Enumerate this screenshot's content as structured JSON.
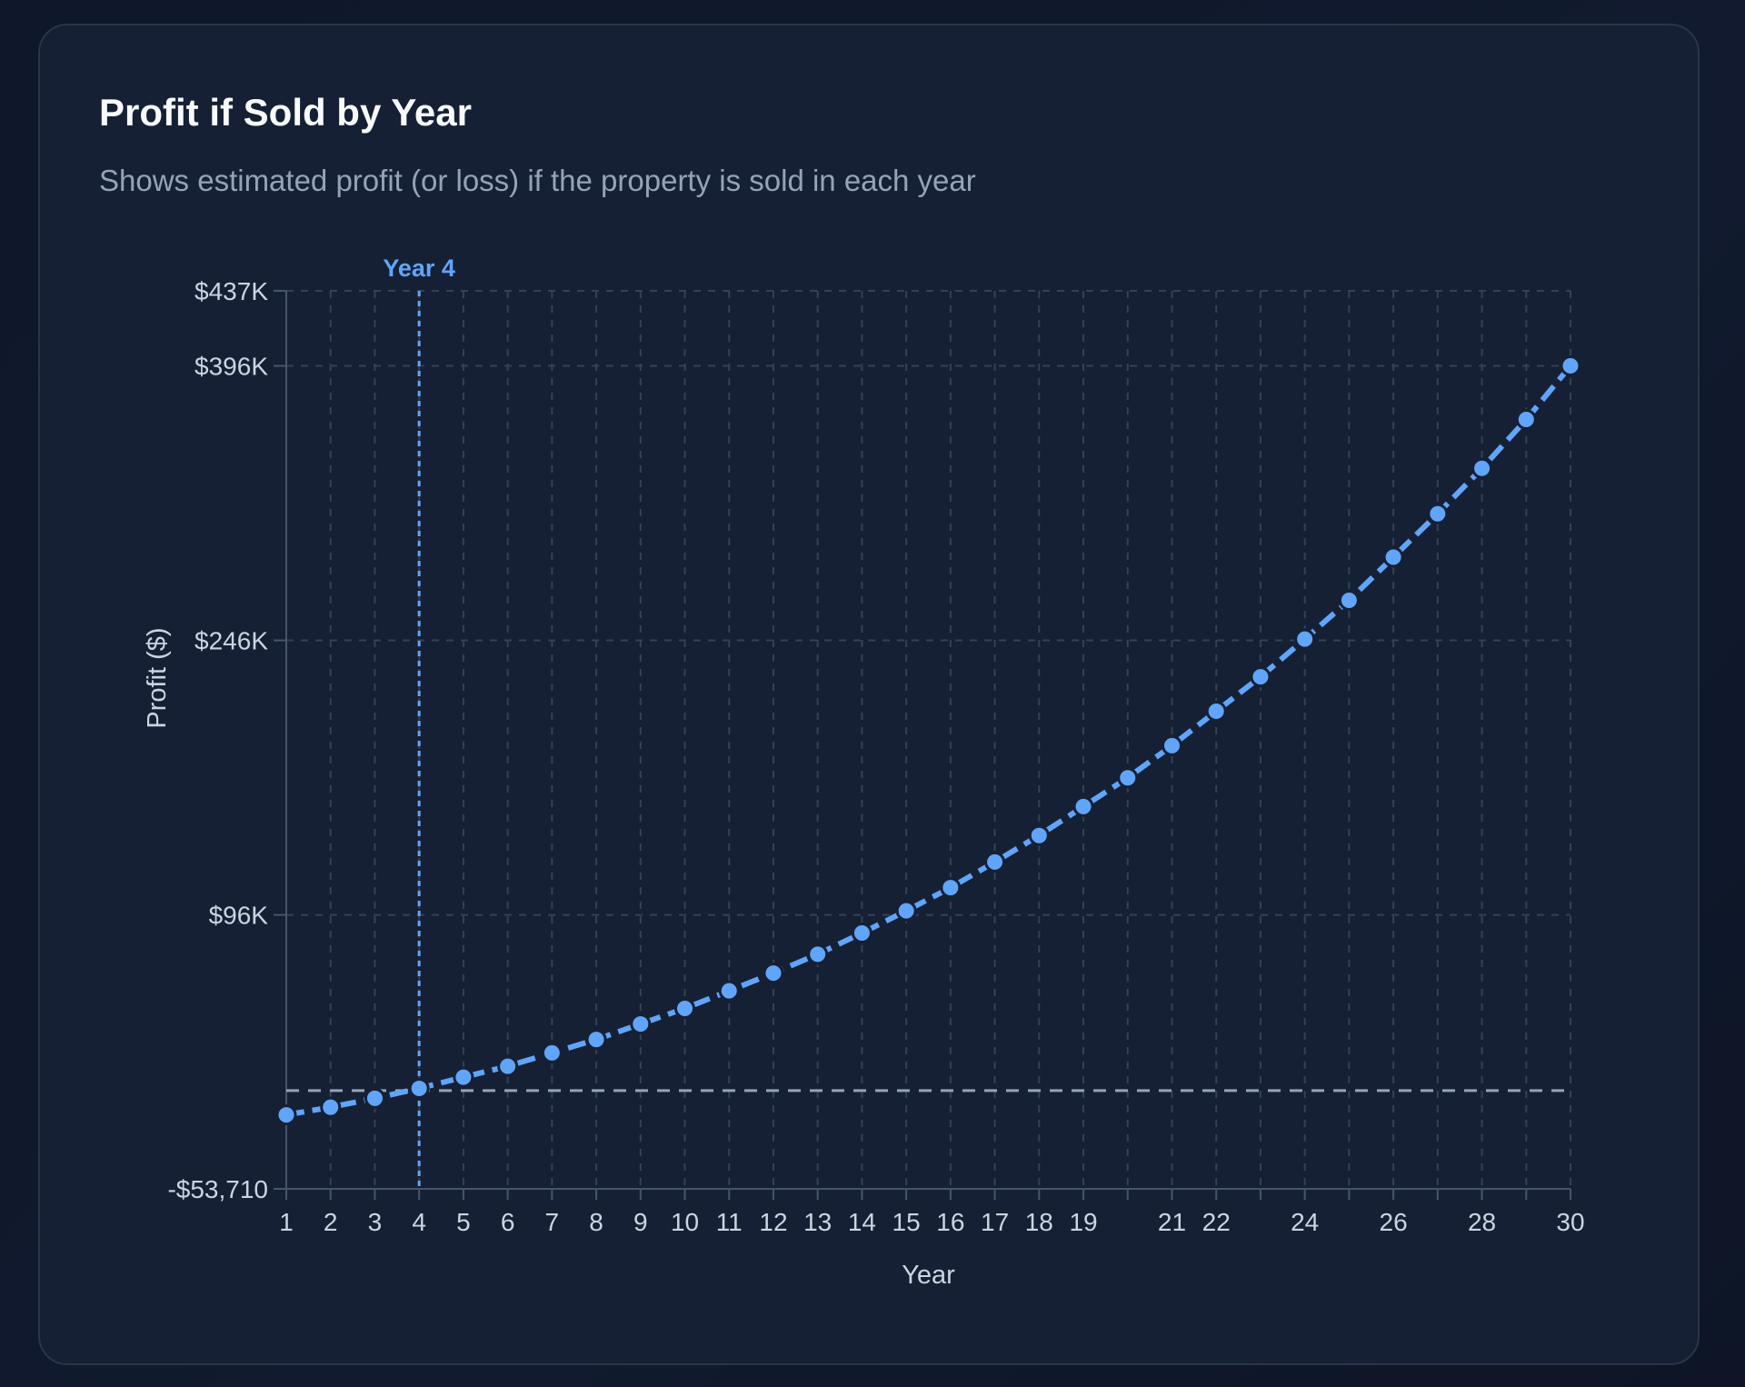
{
  "card": {
    "title": "Profit if Sold by Year",
    "subtitle": "Shows estimated profit (or loss) if the property is sold in each year"
  },
  "chart_data": {
    "type": "line",
    "xlabel": "Year",
    "ylabel": "Profit ($)",
    "x": [
      1,
      2,
      3,
      4,
      5,
      6,
      7,
      8,
      9,
      10,
      11,
      12,
      13,
      14,
      15,
      16,
      17,
      18,
      19,
      20,
      21,
      22,
      23,
      24,
      25,
      26,
      27,
      28,
      29,
      30
    ],
    "values": [
      -13300,
      -9100,
      -4200,
      1200,
      7300,
      13300,
      20600,
      27900,
      36400,
      44900,
      54500,
      64200,
      74500,
      86100,
      98200,
      110900,
      124900,
      139400,
      155200,
      170900,
      188500,
      207300,
      226100,
      246700,
      267900,
      291500,
      315200,
      340000,
      366700,
      396000
    ],
    "x_tick_labels": [
      "1",
      "2",
      "3",
      "4",
      "5",
      "6",
      "7",
      "8",
      "9",
      "10",
      "11",
      "12",
      "13",
      "14",
      "15",
      "16",
      "17",
      "18",
      "19",
      "21",
      "22",
      "24",
      "26",
      "28",
      "30"
    ],
    "x_tick_values": [
      1,
      2,
      3,
      4,
      5,
      6,
      7,
      8,
      9,
      10,
      11,
      12,
      13,
      14,
      15,
      16,
      17,
      18,
      19,
      21,
      22,
      24,
      26,
      28,
      30
    ],
    "y_ticks": [
      {
        "value": 437000,
        "label": "$437K"
      },
      {
        "value": 396000,
        "label": "$396K"
      },
      {
        "value": 246000,
        "label": "$246K"
      },
      {
        "value": 96000,
        "label": "$96K"
      },
      {
        "value": -53710,
        "label": "-$53,710"
      }
    ],
    "xlim": [
      1,
      30
    ],
    "ylim": [
      -53710,
      437000
    ],
    "grid": true,
    "zero_line": 0,
    "reference_line": {
      "x": 4,
      "label": "Year 4"
    },
    "colors": {
      "line": "#60a5fa",
      "grid": "#334155",
      "axis": "#475569",
      "zero": "#94a3b8"
    }
  }
}
